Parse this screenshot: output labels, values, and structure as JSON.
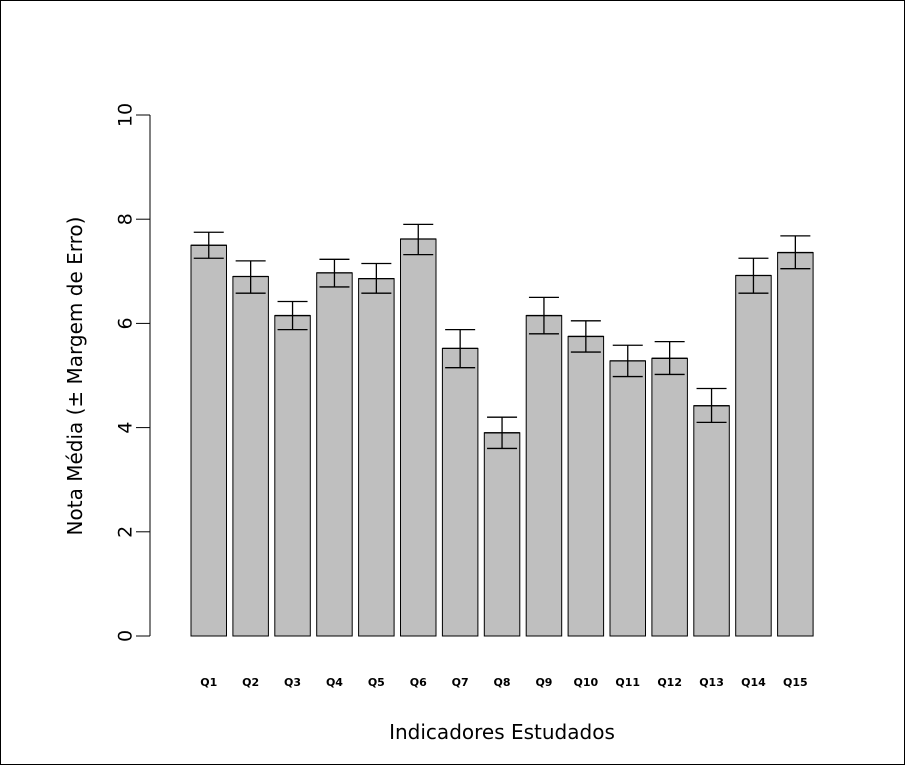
{
  "chart_data": {
    "type": "bar",
    "title": "",
    "xlabel": "Indicadores Estudados",
    "ylabel": "Nota Média (± Margem de Erro)",
    "ylim": [
      0,
      10
    ],
    "yticks": [
      "0",
      "2",
      "4",
      "6",
      "8",
      "10"
    ],
    "categories": [
      "Q1",
      "Q2",
      "Q3",
      "Q4",
      "Q5",
      "Q6",
      "Q7",
      "Q8",
      "Q9",
      "Q10",
      "Q11",
      "Q12",
      "Q13",
      "Q14",
      "Q15"
    ],
    "values": [
      7.5,
      6.9,
      6.15,
      6.97,
      6.86,
      7.62,
      5.52,
      3.9,
      6.15,
      5.75,
      5.28,
      5.33,
      4.42,
      6.92,
      7.36
    ],
    "error_upper": [
      7.75,
      7.2,
      6.42,
      7.23,
      7.15,
      7.9,
      5.88,
      4.2,
      6.5,
      6.05,
      5.58,
      5.65,
      4.75,
      7.25,
      7.68
    ],
    "error_lower": [
      7.25,
      6.58,
      5.88,
      6.7,
      6.58,
      7.32,
      5.15,
      3.6,
      5.8,
      5.45,
      4.98,
      5.02,
      4.1,
      6.58,
      7.05
    ],
    "grid": false,
    "legend": "none",
    "colors": {
      "bar_fill": "#bfbfbf",
      "bar_stroke": "#000000",
      "error_bar": "#000000",
      "axis": "#000000",
      "background": "#ffffff"
    }
  }
}
